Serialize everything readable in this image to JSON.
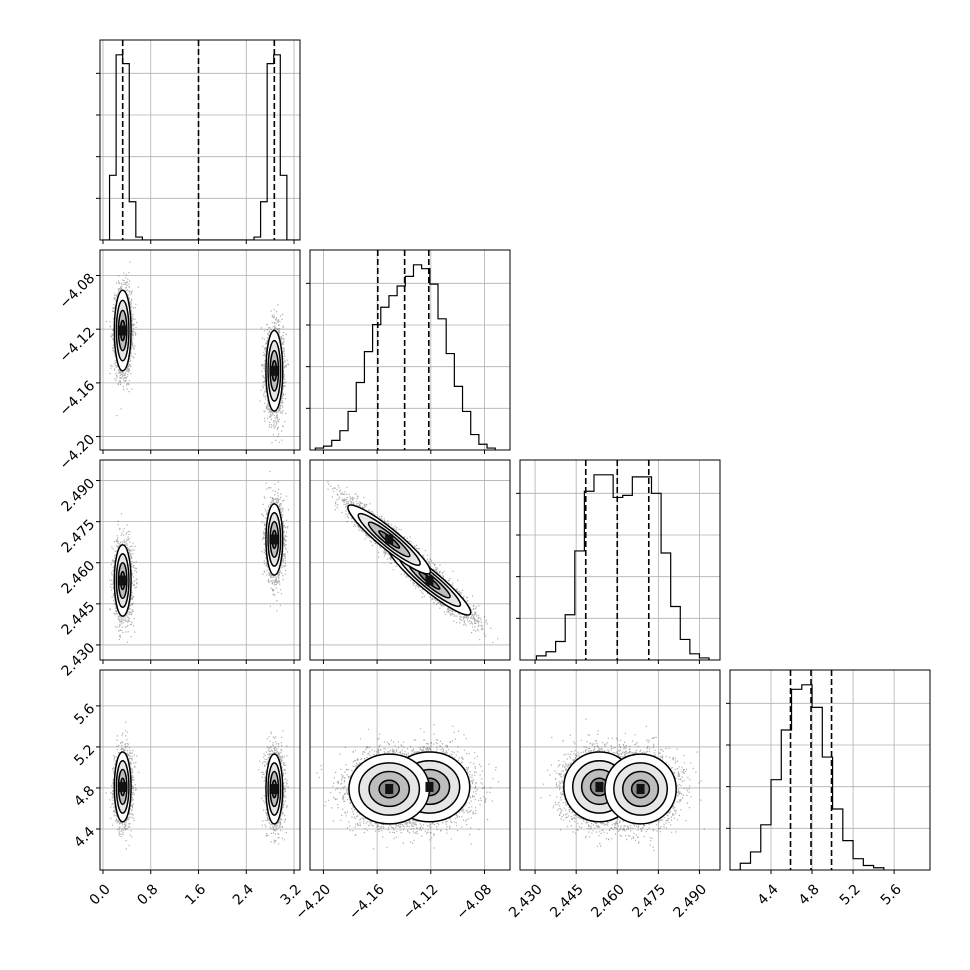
{
  "chart_data": {
    "type": "corner",
    "parameters": [
      {
        "ticks": [
          0.0,
          0.8,
          1.6,
          2.4,
          3.2
        ],
        "tick_labels": [
          "0.0",
          "0.8",
          "1.6",
          "2.4",
          "3.2"
        ],
        "range": [
          -0.05,
          3.3
        ]
      },
      {
        "ticks": [
          -4.2,
          -4.16,
          -4.12,
          -4.08
        ],
        "tick_labels": [
          "−4.20",
          "−4.16",
          "−4.12",
          "−4.08"
        ],
        "range": [
          -4.21,
          -4.061
        ]
      },
      {
        "ticks": [
          2.43,
          2.445,
          2.46,
          2.475,
          2.49
        ],
        "tick_labels": [
          "2.430",
          "2.445",
          "2.460",
          "2.475",
          "2.490"
        ],
        "range": [
          2.4245,
          2.4975
        ]
      },
      {
        "ticks": [
          4.4,
          4.8,
          5.2,
          5.6
        ],
        "tick_labels": [
          "4.4",
          "4.8",
          "5.2",
          "5.6"
        ],
        "range": [
          4.0,
          5.95
        ]
      }
    ],
    "diagonal": [
      {
        "quantiles": [
          0.33,
          1.6,
          2.87
        ],
        "hist_range": [
          0.0,
          3.3
        ],
        "hist_counts": [
          0,
          22,
          63,
          60,
          13,
          1,
          0,
          0,
          0,
          0,
          0,
          0,
          0,
          0,
          0,
          0,
          0,
          0,
          0,
          0,
          0,
          0,
          0,
          1,
          13,
          60,
          63,
          22,
          0,
          0
        ]
      },
      {
        "quantiles": [
          -4.1595,
          -4.1395,
          -4.1215
        ],
        "hist_range": [
          -4.206,
          -4.072
        ],
        "hist_counts": [
          1,
          2,
          5,
          10,
          20,
          35,
          51,
          65,
          74,
          80,
          85,
          90,
          96,
          94,
          86,
          68,
          50,
          33,
          20,
          8,
          3,
          1
        ]
      },
      {
        "quantiles": [
          2.4485,
          2.46,
          2.4715
        ],
        "hist_range": [
          2.4305,
          2.4935
        ],
        "hist_counts": [
          2,
          4,
          9,
          22,
          53,
          82,
          90,
          90,
          79,
          80,
          89,
          89,
          81,
          52,
          26,
          10,
          3,
          1
        ]
      },
      {
        "quantiles": [
          4.59,
          4.79,
          4.99
        ],
        "hist_range": [
          4.0,
          5.5
        ],
        "hist_counts": [
          0,
          3,
          8,
          20,
          40,
          62,
          80,
          82,
          72,
          50,
          27,
          13,
          5,
          2,
          1
        ]
      }
    ],
    "modes": [
      {
        "mean": [
          0.33,
          -4.121,
          2.4535,
          4.81
        ],
        "sd": [
          0.07,
          0.015,
          0.0065,
          0.17
        ]
      },
      {
        "mean": [
          2.87,
          -4.151,
          2.4685,
          4.79
        ],
        "sd": [
          0.07,
          0.015,
          0.0065,
          0.17
        ]
      }
    ],
    "correlations": [
      {
        "pair": [
          1,
          2
        ],
        "rho": -0.93
      }
    ]
  }
}
